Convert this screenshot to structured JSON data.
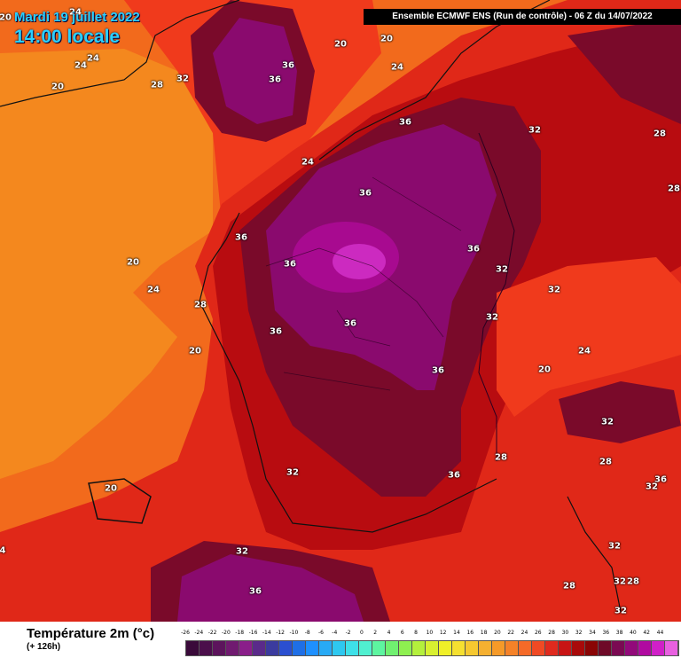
{
  "header": {
    "date": "Mardi 19 juillet 2022",
    "time": "14:00 locale",
    "run": "Ensemble ECMWF ENS  (Run de contrôle)  -  06 Z du 14/07/2022"
  },
  "legend": {
    "title": "Température 2m (°c)",
    "subtitle": "(+ 126h)",
    "ticks": [
      "-26",
      "-24",
      "-22",
      "-20",
      "-18",
      "-16",
      "-14",
      "-12",
      "-10",
      "-8",
      "-6",
      "-4",
      "-2",
      "0",
      "2",
      "4",
      "6",
      "8",
      "10",
      "12",
      "14",
      "16",
      "18",
      "20",
      "22",
      "24",
      "26",
      "28",
      "30",
      "32",
      "34",
      "36",
      "38",
      "40",
      "42",
      "44"
    ],
    "colors": [
      "#3a0a3a",
      "#4b0f4b",
      "#5c145c",
      "#701a70",
      "#8a1e8a",
      "#5a2a8a",
      "#3b3b9e",
      "#2b4fd0",
      "#1f6fe6",
      "#1e90ff",
      "#28aaf5",
      "#2ec8f0",
      "#3ee0e8",
      "#50f0d0",
      "#5df5a0",
      "#70f070",
      "#8ef050",
      "#b4f03c",
      "#d8f030",
      "#f0f028",
      "#f5e030",
      "#f5c830",
      "#f5b030",
      "#f59a28",
      "#f58228",
      "#f56a28",
      "#f04a24",
      "#e02a1e",
      "#c81414",
      "#a80a0a",
      "#8a0505",
      "#6e0a28",
      "#7a0a52",
      "#920a7a",
      "#b00aa0",
      "#d020c8",
      "#e860e0"
    ]
  },
  "map_labels": [
    {
      "text": "20",
      "c": "white"
    },
    {
      "text": "24",
      "c": "white"
    },
    {
      "text": "24",
      "c": "white"
    },
    {
      "text": "24",
      "c": "white"
    },
    {
      "text": "20",
      "c": "white"
    },
    {
      "text": "28",
      "c": "white"
    },
    {
      "text": "32",
      "c": "white"
    },
    {
      "text": "36",
      "c": "white"
    },
    {
      "text": "36",
      "c": "white"
    },
    {
      "text": "20",
      "c": "white"
    },
    {
      "text": "20",
      "c": "white"
    },
    {
      "text": "24",
      "c": "white"
    },
    {
      "text": "36",
      "c": "white"
    },
    {
      "text": "32",
      "c": "white"
    },
    {
      "text": "28",
      "c": "white"
    },
    {
      "text": "28",
      "c": "white"
    },
    {
      "text": "24",
      "c": "white"
    },
    {
      "text": "36",
      "c": "white"
    },
    {
      "text": "36",
      "c": "white"
    },
    {
      "text": "20",
      "c": "white"
    },
    {
      "text": "36",
      "c": "white"
    },
    {
      "text": "36",
      "c": "white"
    },
    {
      "text": "32",
      "c": "white"
    },
    {
      "text": "24",
      "c": "white"
    },
    {
      "text": "28",
      "c": "white"
    },
    {
      "text": "32",
      "c": "white"
    },
    {
      "text": "32",
      "c": "white"
    },
    {
      "text": "36",
      "c": "white"
    },
    {
      "text": "36",
      "c": "white"
    },
    {
      "text": "20",
      "c": "white"
    },
    {
      "text": "20",
      "c": "white"
    },
    {
      "text": "24",
      "c": "white"
    },
    {
      "text": "36",
      "c": "white"
    },
    {
      "text": "32",
      "c": "white"
    },
    {
      "text": "28",
      "c": "white"
    },
    {
      "text": "32",
      "c": "white"
    },
    {
      "text": "36",
      "c": "white"
    },
    {
      "text": "28",
      "c": "white"
    },
    {
      "text": "36",
      "c": "white"
    },
    {
      "text": "32",
      "c": "white"
    },
    {
      "text": "20",
      "c": "white"
    },
    {
      "text": "32",
      "c": "white"
    },
    {
      "text": "36",
      "c": "white"
    },
    {
      "text": "32",
      "c": "white"
    },
    {
      "text": "28",
      "c": "white"
    },
    {
      "text": "32",
      "c": "white"
    },
    {
      "text": "28",
      "c": "white"
    },
    {
      "text": "32",
      "c": "white"
    },
    {
      "text": "4",
      "c": "white"
    }
  ]
}
